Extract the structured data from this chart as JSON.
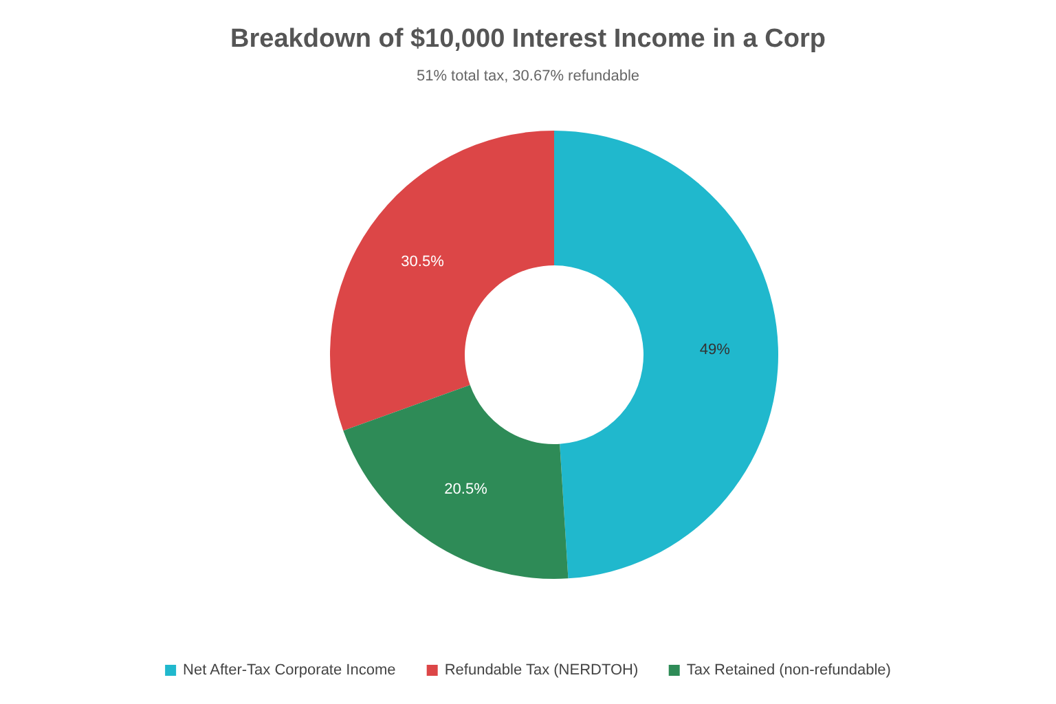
{
  "chart_data": {
    "type": "donut",
    "title": "Breakdown of $10,000 Interest Income in a Corp",
    "subtitle": "51% total tax, 30.67% refundable",
    "categories": [
      "Net After-Tax Corporate Income",
      "Refundable Tax (NERDTOH)",
      "Tax Retained (non-refundable)"
    ],
    "values": [
      49,
      30.5,
      20.5
    ],
    "colors": [
      "#20b8cd",
      "#dc4647",
      "#2e8b57"
    ],
    "value_labels": [
      "49%",
      "30.5%",
      "20.5%"
    ],
    "legend": "bottom"
  }
}
